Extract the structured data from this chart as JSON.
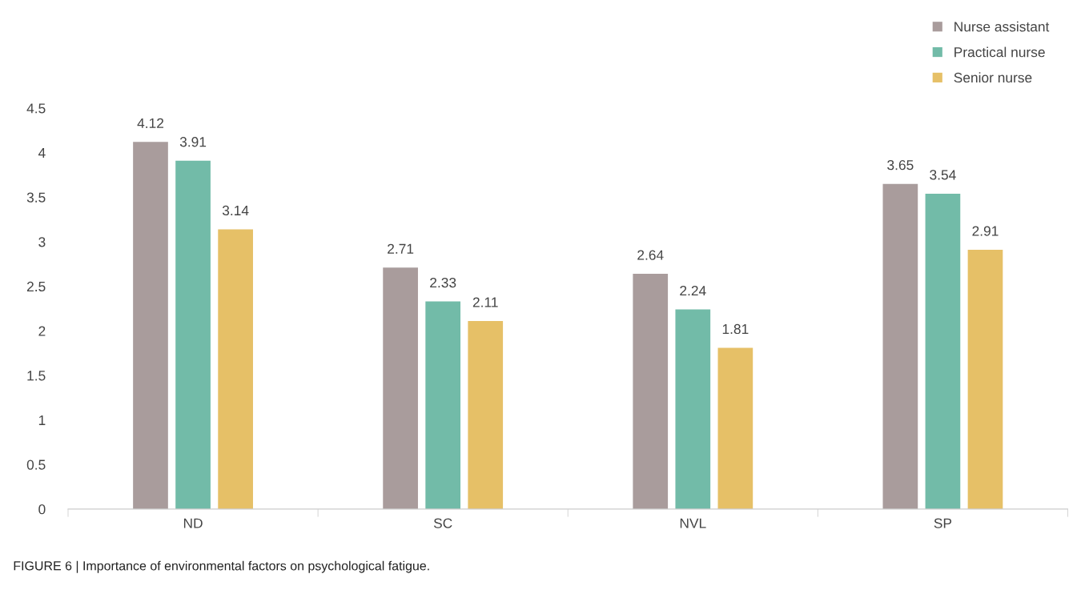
{
  "chart_data": {
    "type": "bar",
    "categories": [
      "ND",
      "SC",
      "NVL",
      "SP"
    ],
    "series": [
      {
        "name": "Nurse assistant",
        "color": "#a99c9c",
        "values": [
          4.12,
          2.71,
          2.64,
          3.65
        ]
      },
      {
        "name": "Practical nurse",
        "color": "#72bba8",
        "values": [
          3.91,
          2.33,
          2.24,
          3.54
        ]
      },
      {
        "name": "Senior nurse",
        "color": "#e6c067",
        "values": [
          3.14,
          2.11,
          1.81,
          2.91
        ]
      }
    ],
    "ylim": [
      0,
      4.5
    ],
    "yticks": [
      0,
      0.5,
      1,
      1.5,
      2,
      2.5,
      3,
      3.5,
      4,
      4.5
    ],
    "grid": false,
    "legend": "top right",
    "data_labels": true,
    "annotations": [
      "FIGURE 6 | Importance of environmental factors on psychological fatigue."
    ]
  }
}
